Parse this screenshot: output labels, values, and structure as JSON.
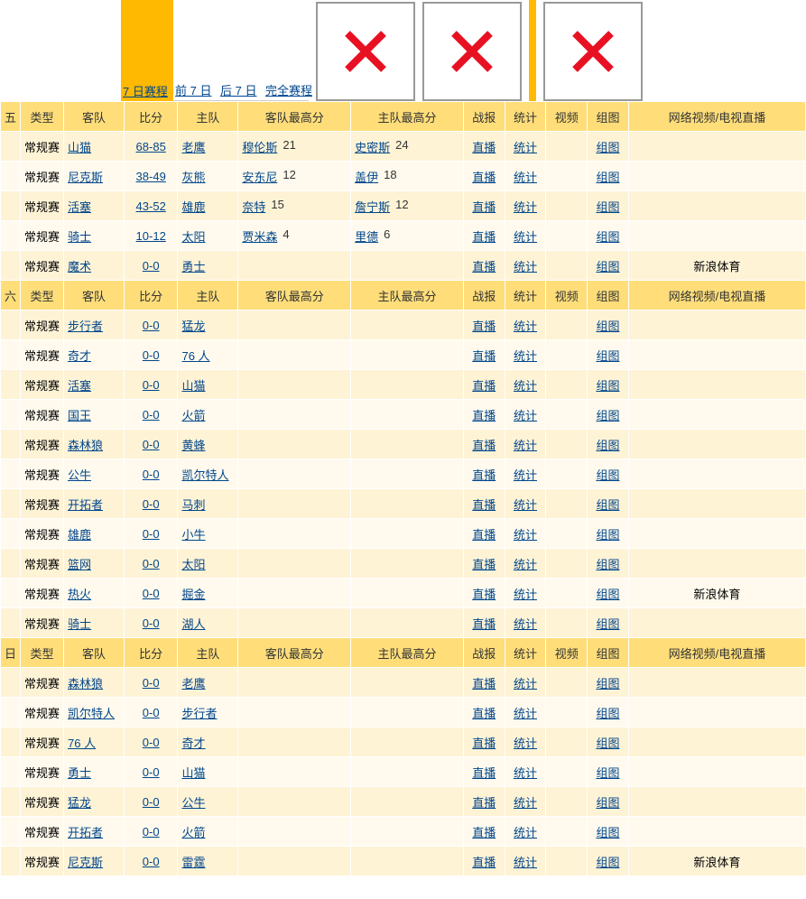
{
  "nav": {
    "items": [
      {
        "label": "7 日赛程",
        "active": true
      },
      {
        "label": "前 7 日",
        "active": false
      },
      {
        "label": "后 7 日",
        "active": false
      },
      {
        "label": "完全赛程",
        "active": false
      }
    ]
  },
  "columns": {
    "type": "类型",
    "away": "客队",
    "score": "比分",
    "home": "主队",
    "away_high": "客队最高分",
    "home_high": "主队最高分",
    "report": "战报",
    "stats": "统计",
    "video": "视频",
    "chart": "组图",
    "stream": "网络视频/电视直播"
  },
  "labels": {
    "regular": "常规赛",
    "live": "直播",
    "stats": "统计",
    "chart": "组图",
    "sina": "新浪体育"
  },
  "sections": [
    {
      "day": "五",
      "games": [
        {
          "type": "常规赛",
          "away": "山猫",
          "score": "68-85",
          "home": "老鹰",
          "away_high_player": "穆伦斯",
          "away_high_pts": "21",
          "home_high_player": "史密斯",
          "home_high_pts": "24",
          "stream": ""
        },
        {
          "type": "常规赛",
          "away": "尼克斯",
          "score": "38-49",
          "home": "灰熊",
          "away_high_player": "安东尼",
          "away_high_pts": "12",
          "home_high_player": "盖伊",
          "home_high_pts": "18",
          "stream": ""
        },
        {
          "type": "常规赛",
          "away": "活塞",
          "score": "43-52",
          "home": "雄鹿",
          "away_high_player": "奈特",
          "away_high_pts": "15",
          "home_high_player": "詹宁斯",
          "home_high_pts": "12",
          "stream": ""
        },
        {
          "type": "常规赛",
          "away": "骑士",
          "score": "10-12",
          "home": "太阳",
          "away_high_player": "贾米森",
          "away_high_pts": "4",
          "home_high_player": "里德",
          "home_high_pts": "6",
          "stream": ""
        },
        {
          "type": "常规赛",
          "away": "魔术",
          "score": "0-0",
          "home": "勇士",
          "away_high_player": "",
          "away_high_pts": "",
          "home_high_player": "",
          "home_high_pts": "",
          "stream": "新浪体育"
        }
      ]
    },
    {
      "day": "六",
      "games": [
        {
          "type": "常规赛",
          "away": "步行者",
          "score": "0-0",
          "home": "猛龙",
          "away_high_player": "",
          "away_high_pts": "",
          "home_high_player": "",
          "home_high_pts": "",
          "stream": ""
        },
        {
          "type": "常规赛",
          "away": "奇才",
          "score": "0-0",
          "home": "76 人",
          "away_high_player": "",
          "away_high_pts": "",
          "home_high_player": "",
          "home_high_pts": "",
          "stream": ""
        },
        {
          "type": "常规赛",
          "away": "活塞",
          "score": "0-0",
          "home": "山猫",
          "away_high_player": "",
          "away_high_pts": "",
          "home_high_player": "",
          "home_high_pts": "",
          "stream": ""
        },
        {
          "type": "常规赛",
          "away": "国王",
          "score": "0-0",
          "home": "火箭",
          "away_high_player": "",
          "away_high_pts": "",
          "home_high_player": "",
          "home_high_pts": "",
          "stream": ""
        },
        {
          "type": "常规赛",
          "away": "森林狼",
          "score": "0-0",
          "home": "黄蜂",
          "away_high_player": "",
          "away_high_pts": "",
          "home_high_player": "",
          "home_high_pts": "",
          "stream": ""
        },
        {
          "type": "常规赛",
          "away": "公牛",
          "score": "0-0",
          "home": "凯尔特人",
          "away_high_player": "",
          "away_high_pts": "",
          "home_high_player": "",
          "home_high_pts": "",
          "stream": ""
        },
        {
          "type": "常规赛",
          "away": "开拓者",
          "score": "0-0",
          "home": "马刺",
          "away_high_player": "",
          "away_high_pts": "",
          "home_high_player": "",
          "home_high_pts": "",
          "stream": ""
        },
        {
          "type": "常规赛",
          "away": "雄鹿",
          "score": "0-0",
          "home": "小牛",
          "away_high_player": "",
          "away_high_pts": "",
          "home_high_player": "",
          "home_high_pts": "",
          "stream": ""
        },
        {
          "type": "常规赛",
          "away": "篮网",
          "score": "0-0",
          "home": "太阳",
          "away_high_player": "",
          "away_high_pts": "",
          "home_high_player": "",
          "home_high_pts": "",
          "stream": ""
        },
        {
          "type": "常规赛",
          "away": "热火",
          "score": "0-0",
          "home": "掘金",
          "away_high_player": "",
          "away_high_pts": "",
          "home_high_player": "",
          "home_high_pts": "",
          "stream": "新浪体育"
        },
        {
          "type": "常规赛",
          "away": "骑士",
          "score": "0-0",
          "home": "湖人",
          "away_high_player": "",
          "away_high_pts": "",
          "home_high_player": "",
          "home_high_pts": "",
          "stream": ""
        }
      ]
    },
    {
      "day": "日",
      "games": [
        {
          "type": "常规赛",
          "away": "森林狼",
          "score": "0-0",
          "home": "老鹰",
          "away_high_player": "",
          "away_high_pts": "",
          "home_high_player": "",
          "home_high_pts": "",
          "stream": ""
        },
        {
          "type": "常规赛",
          "away": "凯尔特人",
          "score": "0-0",
          "home": "步行者",
          "away_high_player": "",
          "away_high_pts": "",
          "home_high_player": "",
          "home_high_pts": "",
          "stream": ""
        },
        {
          "type": "常规赛",
          "away": "76 人",
          "score": "0-0",
          "home": "奇才",
          "away_high_player": "",
          "away_high_pts": "",
          "home_high_player": "",
          "home_high_pts": "",
          "stream": ""
        },
        {
          "type": "常规赛",
          "away": "勇士",
          "score": "0-0",
          "home": "山猫",
          "away_high_player": "",
          "away_high_pts": "",
          "home_high_player": "",
          "home_high_pts": "",
          "stream": ""
        },
        {
          "type": "常规赛",
          "away": "猛龙",
          "score": "0-0",
          "home": "公牛",
          "away_high_player": "",
          "away_high_pts": "",
          "home_high_player": "",
          "home_high_pts": "",
          "stream": ""
        },
        {
          "type": "常规赛",
          "away": "开拓者",
          "score": "0-0",
          "home": "火箭",
          "away_high_player": "",
          "away_high_pts": "",
          "home_high_player": "",
          "home_high_pts": "",
          "stream": ""
        },
        {
          "type": "常规赛",
          "away": "尼克斯",
          "score": "0-0",
          "home": "雷霆",
          "away_high_player": "",
          "away_high_pts": "",
          "home_high_player": "",
          "home_high_pts": "",
          "stream": "新浪体育"
        }
      ]
    }
  ],
  "colors": {
    "header_bg": "#ffde7a",
    "row_odd": "#fff3d6",
    "row_even": "#fffaed",
    "link": "#00468c",
    "nav_active": "#ffb900",
    "x_color": "#e81123"
  }
}
